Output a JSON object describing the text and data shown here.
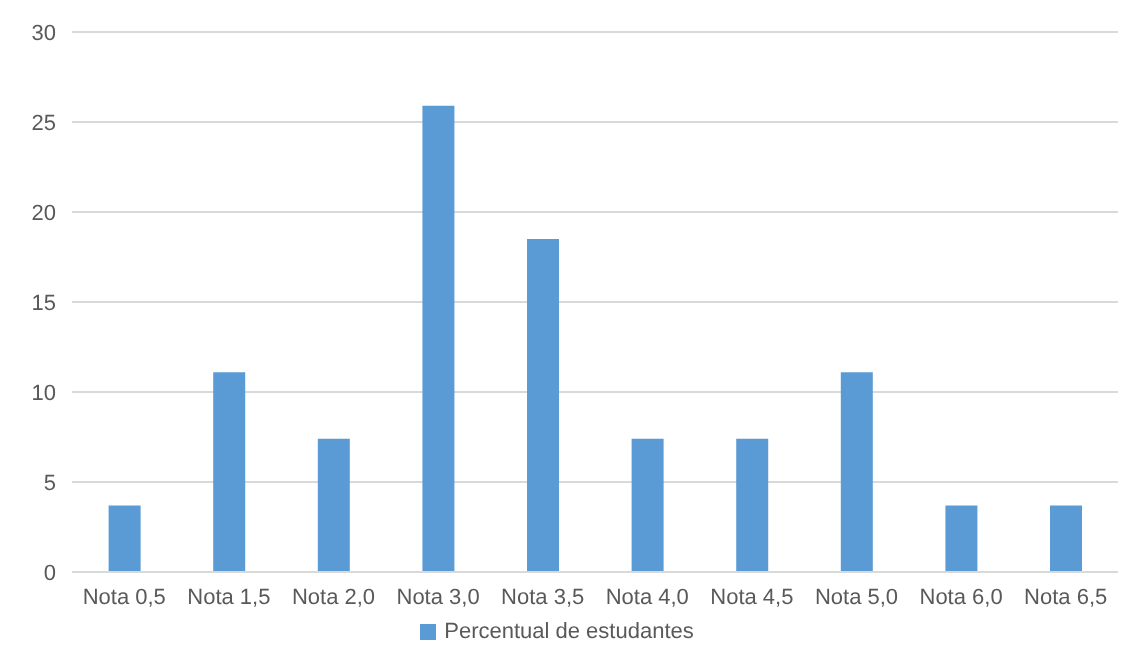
{
  "chart_data": {
    "type": "bar",
    "categories": [
      "Nota 0,5",
      "Nota 1,5",
      "Nota 2,0",
      "Nota 3,0",
      "Nota 3,5",
      "Nota 4,0",
      "Nota 4,5",
      "Nota 5,0",
      "Nota 6,0",
      "Nota 6,5"
    ],
    "series": [
      {
        "name": "Percentual de estudantes",
        "color": "#5b9bd5",
        "values": [
          3.7,
          11.1,
          7.4,
          25.9,
          18.5,
          7.4,
          7.4,
          11.1,
          3.7,
          3.7
        ]
      }
    ],
    "ylim": [
      0,
      30
    ],
    "yticks": [
      0,
      5,
      10,
      15,
      20,
      25,
      30
    ],
    "grid": "y",
    "legend": "bottom"
  }
}
